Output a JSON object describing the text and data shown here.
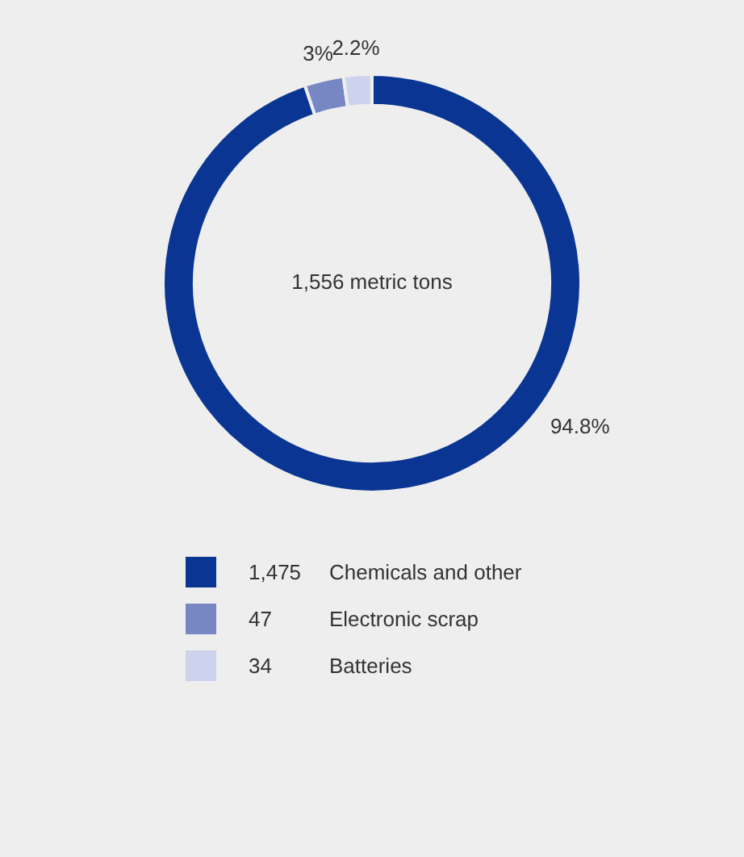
{
  "chart_data": {
    "type": "donut",
    "categories": [
      "Chemicals and other",
      "Electronic scrap",
      "Batteries"
    ],
    "values": [
      1475,
      47,
      34
    ],
    "colors": [
      "#0a3592",
      "#7687c4",
      "#cdd3ec"
    ],
    "value_labels": [
      "1,475",
      "47",
      "34"
    ],
    "annotations": [
      "1,556 metric tons",
      {
        "text": "94.8%",
        "x": "Chemicals and other"
      },
      {
        "text": "3%",
        "x": "Electronic scrap"
      },
      {
        "text": "2.2%",
        "x": "Batteries"
      }
    ],
    "legend": "bottom"
  }
}
